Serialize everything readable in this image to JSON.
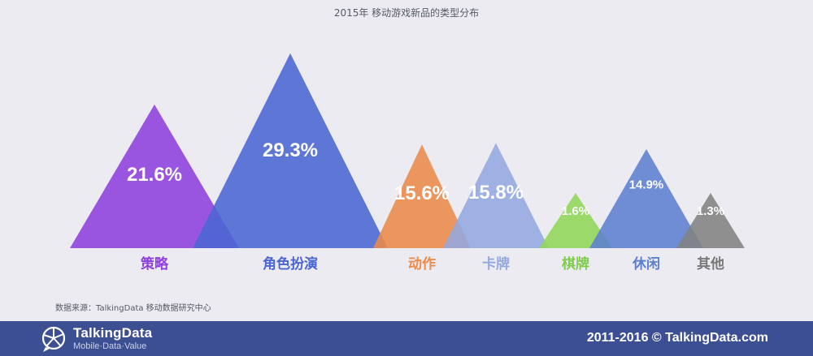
{
  "chart_data": {
    "type": "area",
    "title": "2015年 移动游戏新品的类型分布",
    "unit": "%",
    "categories": [
      "策略",
      "角色扮演",
      "动作",
      "卡牌",
      "棋牌",
      "休闲",
      "其他"
    ],
    "values": [
      21.6,
      29.3,
      15.6,
      15.8,
      1.6,
      14.9,
      1.3
    ],
    "value_labels": [
      "21.6%",
      "29.3%",
      "15.6%",
      "15.8%",
      "1.6%",
      "14.9%",
      "1.3%"
    ],
    "colors": [
      "#8d3fdd",
      "#4a66d3",
      "#ec8a4a",
      "#93a9df",
      "#8fd658",
      "#5d7fd0",
      "#828282"
    ],
    "label_colors": [
      "#8d3fdd",
      "#4a66d3",
      "#ec8a4a",
      "#93a9df",
      "#7fcc4a",
      "#5d7fd0",
      "#777777"
    ]
  },
  "source_note": "数据来源：TalkingData   移动数据研究中心",
  "footer": {
    "brand": "TalkingData",
    "tagline": "Mobile·Data·Value",
    "copyright": "2011-2016 © TalkingData.com",
    "background": "#3d4f93",
    "logo_icon": "pie-chart-speech-bubble-icon"
  }
}
